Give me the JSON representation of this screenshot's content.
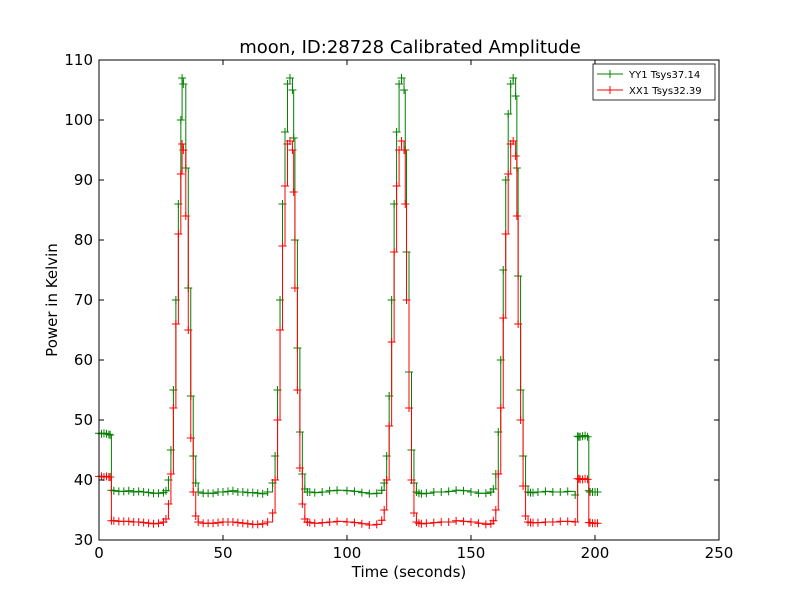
{
  "chart_data": {
    "type": "line",
    "title": "moon, ID:28728 Calibrated Amplitude",
    "xlabel": "Time (seconds)",
    "ylabel": "Power in Kelvin",
    "xlim": [
      0,
      250
    ],
    "ylim": [
      30,
      110
    ],
    "xticks": [
      "0",
      "50",
      "100",
      "150",
      "200",
      "250"
    ],
    "yticks": [
      "30",
      "40",
      "50",
      "60",
      "70",
      "80",
      "90",
      "100",
      "110"
    ],
    "grid": false,
    "legend_position": "top-right",
    "marker": "plus",
    "series": [
      {
        "name": "YY1 Tsys37.14",
        "color": "#008000",
        "x": [
          0,
          1,
          2,
          3,
          4,
          4.5,
          5,
          6,
          8,
          10,
          12,
          14,
          16,
          18,
          20,
          22,
          24,
          26,
          27,
          28,
          29,
          30,
          31,
          32,
          33,
          33.5,
          34,
          35,
          36,
          37,
          38,
          39,
          40,
          42,
          44,
          46,
          48,
          50,
          52,
          54,
          56,
          58,
          60,
          62,
          64,
          66,
          68,
          70,
          71,
          72,
          73,
          74,
          75,
          76,
          77,
          78,
          78.5,
          79,
          80,
          81,
          82,
          83,
          84,
          85,
          87,
          90,
          93,
          96,
          100,
          103,
          106,
          109,
          112,
          114,
          115,
          116,
          117,
          118,
          119,
          120,
          121,
          122,
          123,
          123.5,
          124,
          125,
          126,
          127,
          128,
          129,
          130,
          132,
          135,
          138,
          141,
          144,
          147,
          150,
          153,
          156,
          158,
          159,
          160,
          161,
          162,
          163,
          164,
          165,
          166,
          167,
          168,
          168.5,
          169,
          170,
          171,
          172,
          173,
          174,
          175,
          177,
          180,
          183,
          186,
          189,
          192,
          193,
          193.5,
          194,
          195,
          196,
          197,
          197.5,
          198,
          199,
          200,
          201
        ],
        "y": [
          47.8,
          47.7,
          47.8,
          47.7,
          47.6,
          47.5,
          38.3,
          38.2,
          38.1,
          38.1,
          38.2,
          38.0,
          38.1,
          38.0,
          37.9,
          37.8,
          37.8,
          37.9,
          38.2,
          40.0,
          45.0,
          55.0,
          70.0,
          86.0,
          100.0,
          107.0,
          106.0,
          92.0,
          72.0,
          54.0,
          44.0,
          39.5,
          38.0,
          37.8,
          37.8,
          37.8,
          38.0,
          38.0,
          38.1,
          38.2,
          38.0,
          38.0,
          37.9,
          37.9,
          37.8,
          37.7,
          38.0,
          39.5,
          44.0,
          55.0,
          70.0,
          86.0,
          98.0,
          106.0,
          107.0,
          105.0,
          97.0,
          80.0,
          62.0,
          48.0,
          41.0,
          38.5,
          38.0,
          38.0,
          37.9,
          38.0,
          38.2,
          38.3,
          38.2,
          38.1,
          37.9,
          37.7,
          37.8,
          38.3,
          39.5,
          44.0,
          54.0,
          70.0,
          86.0,
          98.0,
          106.0,
          107.0,
          105.0,
          95.0,
          78.0,
          58.0,
          45.0,
          39.5,
          38.0,
          37.8,
          37.7,
          37.8,
          38.0,
          38.0,
          38.1,
          38.3,
          38.2,
          38.0,
          37.8,
          37.8,
          38.0,
          38.5,
          41.0,
          48.0,
          60.0,
          75.0,
          90.0,
          101.0,
          106.0,
          107.0,
          104.0,
          92.0,
          74.0,
          55.0,
          44.0,
          39.0,
          38.0,
          37.9,
          37.9,
          38.0,
          38.1,
          38.0,
          38.0,
          38.1,
          37.5,
          47.3,
          47.2,
          47.2,
          47.3,
          47.4,
          47.2,
          38.2,
          38.0,
          38.0,
          38.0,
          38.0
        ]
      },
      {
        "name": "XX1 Tsys32.39",
        "color": "#ff0000",
        "x": [
          0,
          1,
          2,
          3,
          4,
          4.5,
          5,
          6,
          8,
          10,
          12,
          14,
          16,
          18,
          20,
          22,
          24,
          26,
          27,
          28,
          29,
          30,
          31,
          32,
          33,
          33.5,
          34,
          35,
          36,
          37,
          38,
          39,
          40,
          42,
          44,
          46,
          48,
          50,
          52,
          54,
          56,
          58,
          60,
          62,
          64,
          66,
          68,
          70,
          71,
          72,
          73,
          74,
          75,
          76,
          77,
          78,
          78.5,
          79,
          80,
          81,
          82,
          83,
          84,
          85,
          87,
          90,
          93,
          96,
          100,
          103,
          106,
          109,
          112,
          114,
          115,
          116,
          117,
          118,
          119,
          120,
          121,
          122,
          123,
          123.5,
          124,
          125,
          126,
          127,
          128,
          129,
          130,
          132,
          135,
          138,
          141,
          144,
          147,
          150,
          153,
          156,
          158,
          159,
          160,
          161,
          162,
          163,
          164,
          165,
          166,
          167,
          168,
          168.5,
          169,
          170,
          171,
          172,
          173,
          174,
          175,
          177,
          180,
          183,
          186,
          189,
          192,
          193,
          193.5,
          194,
          195,
          196,
          197,
          197.5,
          198,
          199,
          200,
          201
        ],
        "y": [
          40.6,
          40.6,
          40.5,
          40.6,
          40.5,
          40.5,
          33.2,
          33.2,
          33.1,
          33.1,
          33.1,
          33.0,
          33.0,
          32.9,
          32.8,
          32.7,
          32.8,
          33.0,
          33.5,
          36.0,
          41.0,
          52.0,
          66.0,
          81.0,
          91.0,
          96.0,
          95.0,
          84.0,
          65.0,
          47.0,
          38.0,
          34.0,
          33.0,
          32.8,
          32.8,
          32.8,
          32.9,
          33.0,
          33.0,
          33.0,
          32.9,
          32.8,
          32.7,
          32.6,
          32.6,
          32.7,
          33.0,
          34.5,
          40.0,
          50.0,
          65.0,
          79.0,
          89.0,
          96.0,
          96.5,
          95.0,
          88.0,
          72.0,
          55.0,
          42.0,
          36.0,
          33.5,
          33.0,
          32.9,
          32.8,
          32.9,
          33.0,
          33.1,
          33.0,
          32.9,
          32.7,
          32.5,
          32.6,
          33.3,
          35.0,
          40.0,
          49.0,
          63.0,
          78.0,
          89.0,
          95.0,
          96.5,
          95.0,
          86.0,
          70.0,
          52.0,
          40.0,
          34.5,
          33.0,
          32.8,
          32.7,
          32.8,
          32.9,
          33.0,
          33.0,
          33.2,
          33.1,
          33.0,
          32.8,
          32.6,
          32.7,
          33.2,
          35.0,
          41.0,
          52.0,
          67.0,
          81.0,
          91.0,
          96.0,
          96.5,
          94.0,
          84.0,
          66.0,
          50.0,
          39.0,
          34.0,
          33.0,
          32.9,
          32.9,
          32.9,
          33.0,
          33.0,
          33.1,
          33.1,
          33.0,
          40.2,
          40.2,
          40.1,
          40.1,
          40.2,
          40.1,
          32.9,
          32.9,
          32.8,
          32.8,
          32.8
        ]
      }
    ]
  }
}
